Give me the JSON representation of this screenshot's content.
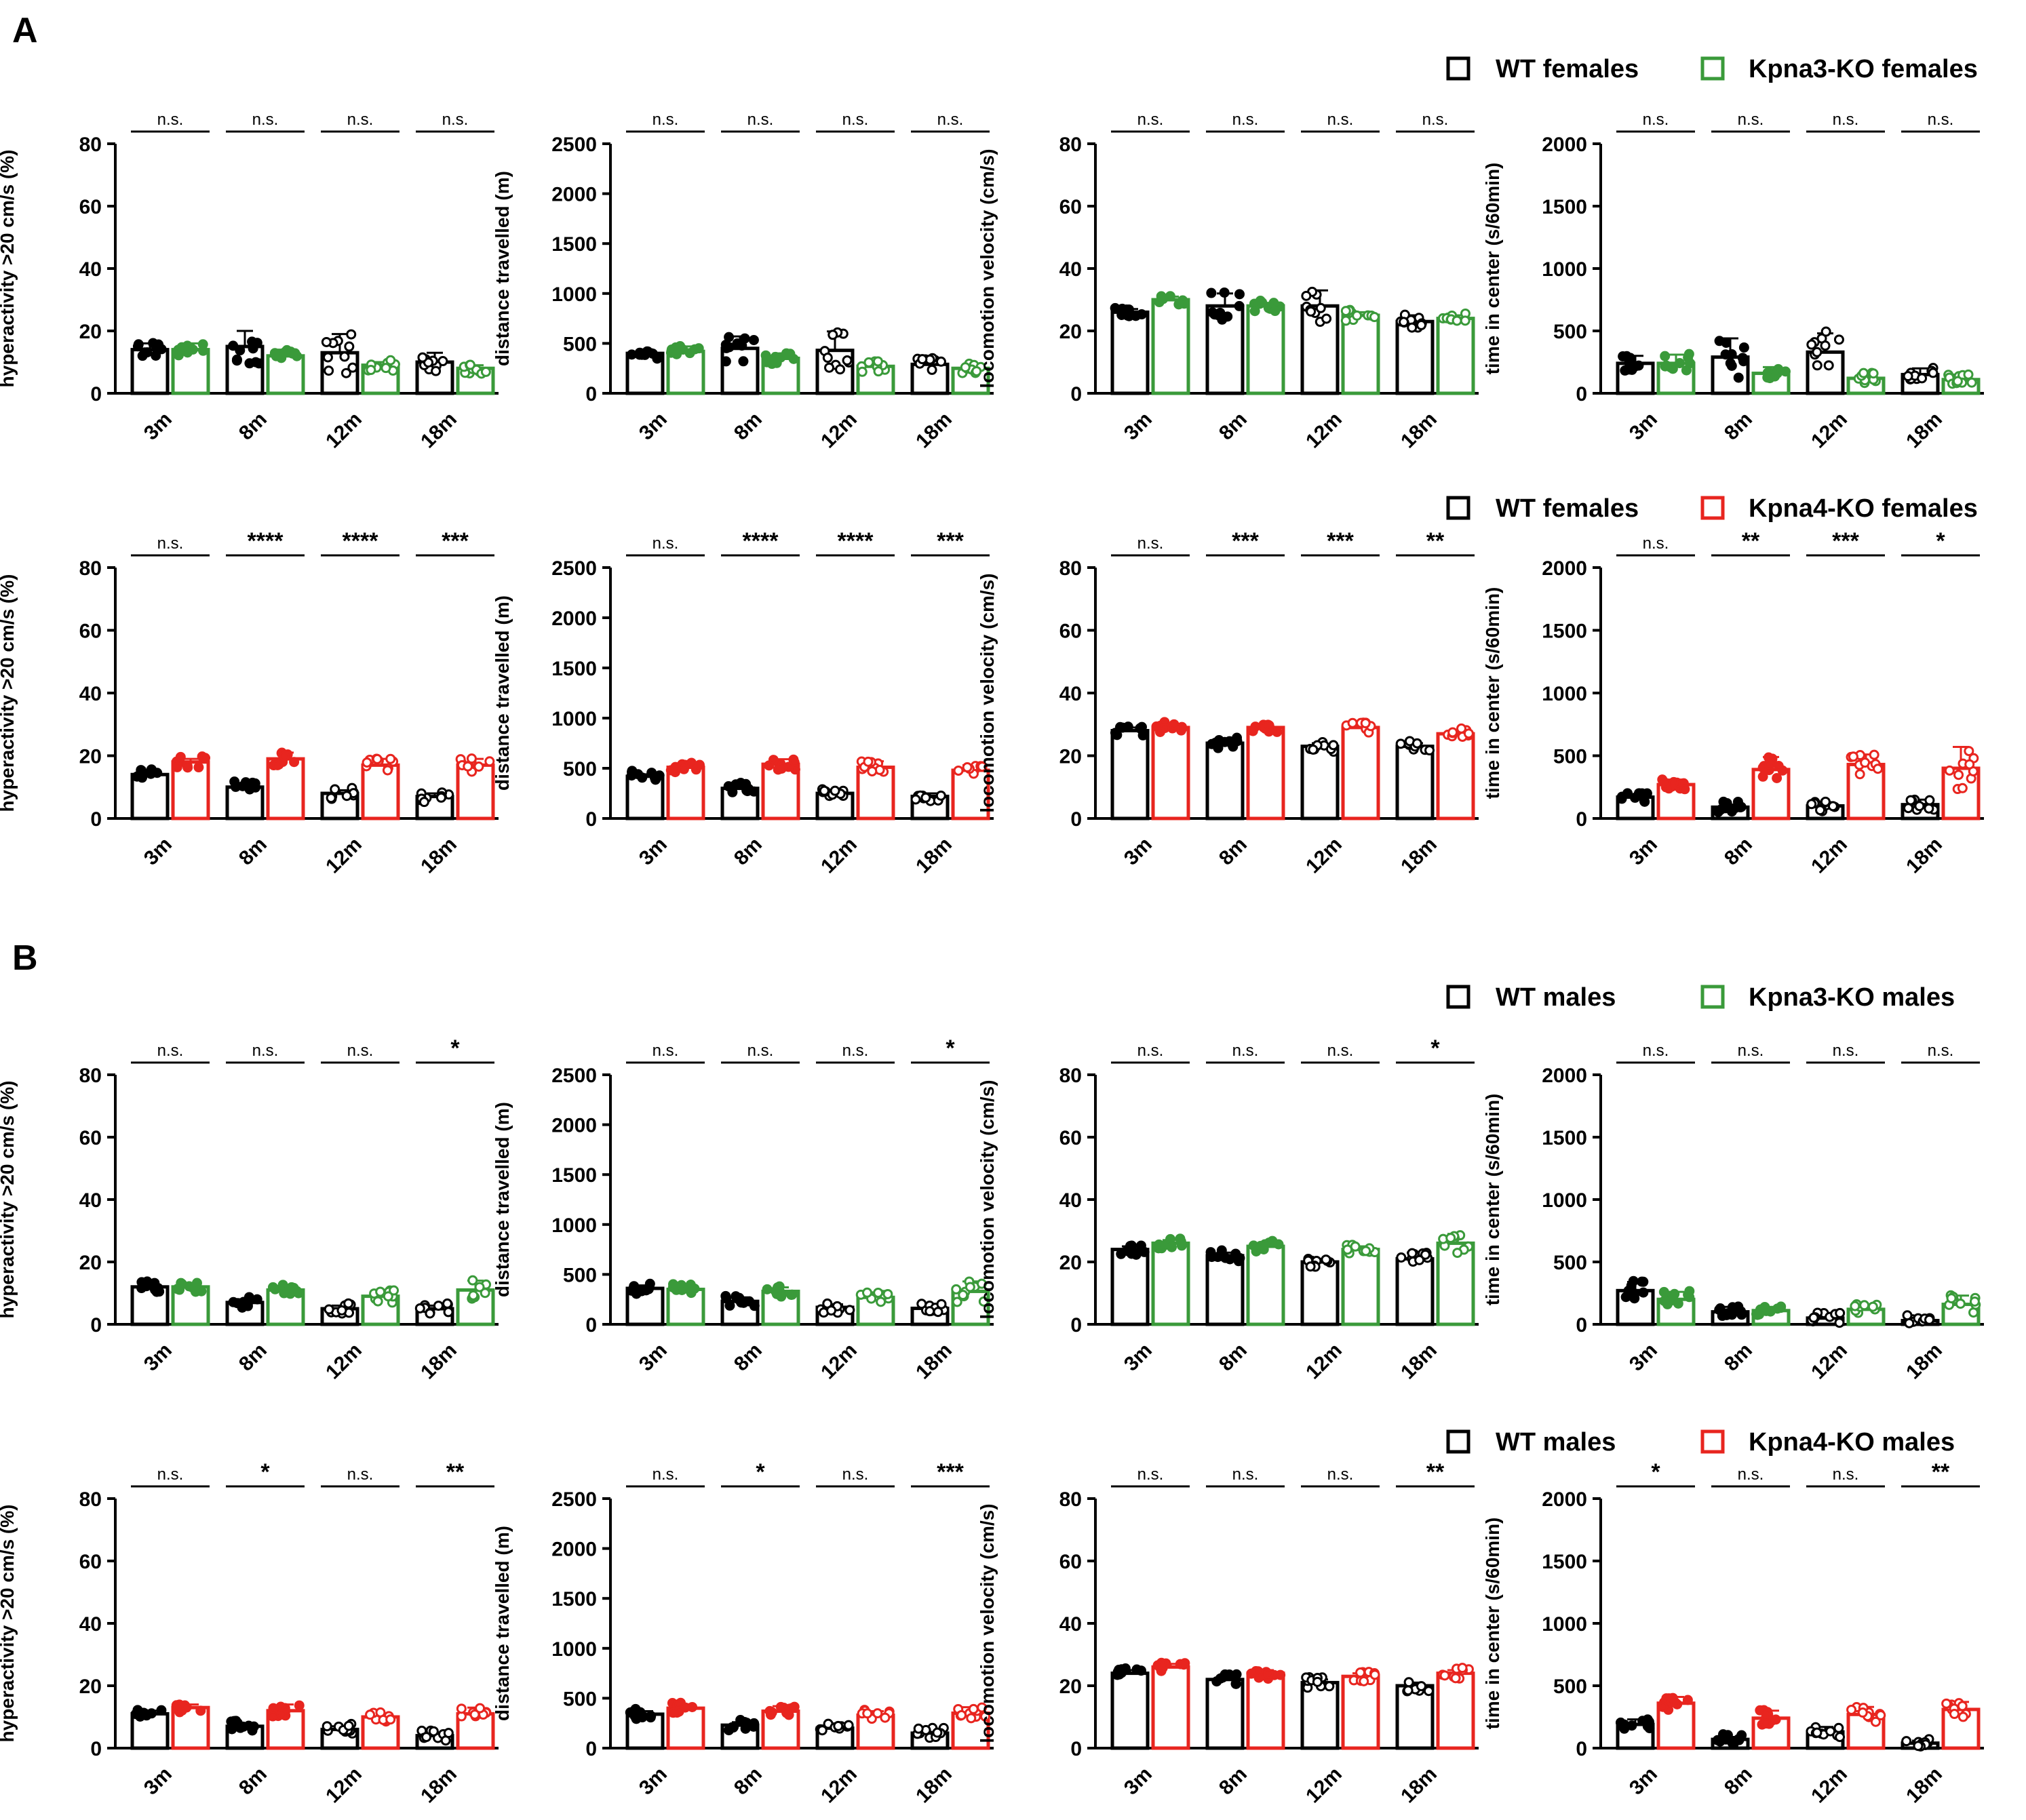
{
  "figure": {
    "panels": [
      {
        "label": "A"
      },
      {
        "label": "B"
      }
    ],
    "legends": [
      {
        "wt": "WT females",
        "ko": "Kpna3-KO females",
        "ko_color": "#3a9a3a"
      },
      {
        "wt": "WT females",
        "ko": "Kpna4-KO females",
        "ko_color": "#e8251f"
      },
      {
        "wt": "WT males",
        "ko": "Kpna3-KO males",
        "ko_color": "#3a9a3a"
      },
      {
        "wt": "WT males",
        "ko": "Kpna4-KO males",
        "ko_color": "#e8251f"
      }
    ]
  },
  "chart_data": [
    {
      "type": "bar",
      "row": 0,
      "col": 0,
      "ylabel": "hyperactivity >20 cm/s (%)",
      "ylim": [
        0,
        80
      ],
      "yticks": [
        0,
        20,
        40,
        60,
        80
      ],
      "categories": [
        "3m",
        "8m",
        "12m",
        "18m"
      ],
      "series": [
        {
          "name": "WT females",
          "color": "#000000",
          "values": [
            14,
            15,
            13,
            10
          ],
          "err": [
            2,
            5,
            6,
            3
          ]
        },
        {
          "name": "Kpna3-KO females",
          "color": "#3a9a3a",
          "values": [
            14,
            12,
            9,
            8
          ],
          "err": [
            2,
            2,
            1,
            1
          ]
        }
      ],
      "significance": [
        "n.s.",
        "n.s.",
        "n.s.",
        "n.s."
      ]
    },
    {
      "type": "bar",
      "row": 0,
      "col": 1,
      "ylabel": "distance travelled (m)",
      "ylim": [
        0,
        2500
      ],
      "yticks": [
        0,
        500,
        1000,
        1500,
        2000,
        2500
      ],
      "categories": [
        "3m",
        "8m",
        "12m",
        "18m"
      ],
      "series": [
        {
          "name": "WT females",
          "color": "#000000",
          "values": [
            400,
            450,
            430,
            290
          ],
          "err": [
            40,
            120,
            190,
            60
          ]
        },
        {
          "name": "Kpna3-KO females",
          "color": "#3a9a3a",
          "values": [
            420,
            350,
            270,
            250
          ],
          "err": [
            50,
            50,
            30,
            30
          ]
        }
      ],
      "significance": [
        "n.s.",
        "n.s.",
        "n.s.",
        "n.s."
      ]
    },
    {
      "type": "bar",
      "row": 0,
      "col": 2,
      "ylabel": "locomotion velocity (cm/s)",
      "ylim": [
        0,
        80
      ],
      "yticks": [
        0,
        20,
        40,
        60,
        80
      ],
      "categories": [
        "3m",
        "8m",
        "12m",
        "18m"
      ],
      "series": [
        {
          "name": "WT females",
          "color": "#000000",
          "values": [
            26,
            28,
            28,
            23
          ],
          "err": [
            1,
            4,
            5,
            2
          ]
        },
        {
          "name": "Kpna3-KO females",
          "color": "#3a9a3a",
          "values": [
            30,
            28,
            25,
            24
          ],
          "err": [
            1,
            1,
            1,
            1
          ]
        }
      ],
      "significance": [
        "n.s.",
        "n.s.",
        "n.s.",
        "n.s."
      ]
    },
    {
      "type": "bar",
      "row": 0,
      "col": 3,
      "ylabel": "time in center (s/60min)",
      "ylim": [
        0,
        2000
      ],
      "yticks": [
        0,
        500,
        1000,
        1500,
        2000
      ],
      "categories": [
        "3m",
        "8m",
        "12m",
        "18m"
      ],
      "series": [
        {
          "name": "WT females",
          "color": "#000000",
          "values": [
            240,
            290,
            330,
            150
          ],
          "err": [
            60,
            150,
            150,
            50
          ]
        },
        {
          "name": "Kpna3-KO females",
          "color": "#3a9a3a",
          "values": [
            240,
            160,
            120,
            110
          ],
          "err": [
            70,
            50,
            30,
            40
          ]
        }
      ],
      "significance": [
        "n.s.",
        "n.s.",
        "n.s.",
        "n.s."
      ]
    },
    {
      "type": "bar",
      "row": 1,
      "col": 0,
      "ylabel": "hyperactivity >20 cm/s (%)",
      "ylim": [
        0,
        80
      ],
      "yticks": [
        0,
        20,
        40,
        60,
        80
      ],
      "categories": [
        "3m",
        "8m",
        "12m",
        "18m"
      ],
      "series": [
        {
          "name": "WT females",
          "color": "#000000",
          "values": [
            14,
            10,
            8,
            7
          ],
          "err": [
            1,
            1,
            1,
            1
          ]
        },
        {
          "name": "Kpna4-KO females",
          "color": "#e8251f",
          "values": [
            18,
            19,
            17,
            17
          ],
          "err": [
            1,
            2,
            2,
            2
          ]
        }
      ],
      "significance": [
        "n.s.",
        "****",
        "****",
        "***"
      ]
    },
    {
      "type": "bar",
      "row": 1,
      "col": 1,
      "ylabel": "distance travelled (m)",
      "ylim": [
        0,
        2500
      ],
      "yticks": [
        0,
        500,
        1000,
        1500,
        2000,
        2500
      ],
      "categories": [
        "3m",
        "8m",
        "12m",
        "18m"
      ],
      "series": [
        {
          "name": "WT females",
          "color": "#000000",
          "values": [
            420,
            300,
            250,
            220
          ],
          "err": [
            20,
            30,
            30,
            30
          ]
        },
        {
          "name": "Kpna4-KO females",
          "color": "#e8251f",
          "values": [
            510,
            540,
            510,
            480
          ],
          "err": [
            30,
            50,
            60,
            50
          ]
        }
      ],
      "significance": [
        "n.s.",
        "****",
        "****",
        "***"
      ]
    },
    {
      "type": "bar",
      "row": 1,
      "col": 2,
      "ylabel": "locomotion velocity (cm/s)",
      "ylim": [
        0,
        80
      ],
      "yticks": [
        0,
        20,
        40,
        60,
        80
      ],
      "categories": [
        "3m",
        "8m",
        "12m",
        "18m"
      ],
      "series": [
        {
          "name": "WT females",
          "color": "#000000",
          "values": [
            28,
            24,
            23,
            23
          ],
          "err": [
            1,
            1,
            1,
            1
          ]
        },
        {
          "name": "Kpna4-KO females",
          "color": "#e8251f",
          "values": [
            29,
            29,
            29,
            27
          ],
          "err": [
            1,
            1,
            1,
            1
          ]
        }
      ],
      "significance": [
        "n.s.",
        "***",
        "***",
        "**"
      ]
    },
    {
      "type": "bar",
      "row": 1,
      "col": 3,
      "ylabel": "time in center (s/60min)",
      "ylim": [
        0,
        2000
      ],
      "yticks": [
        0,
        500,
        1000,
        1500,
        2000
      ],
      "categories": [
        "3m",
        "8m",
        "12m",
        "18m"
      ],
      "series": [
        {
          "name": "WT females",
          "color": "#000000",
          "values": [
            170,
            90,
            100,
            110
          ],
          "err": [
            20,
            20,
            30,
            40
          ]
        },
        {
          "name": "Kpna4-KO females",
          "color": "#e8251f",
          "values": [
            270,
            390,
            430,
            400
          ],
          "err": [
            40,
            100,
            80,
            170
          ]
        }
      ],
      "significance": [
        "n.s.",
        "**",
        "***",
        "*"
      ]
    },
    {
      "type": "bar",
      "row": 2,
      "col": 0,
      "ylabel": "hyperactivity >20 cm/s (%)",
      "ylim": [
        0,
        80
      ],
      "yticks": [
        0,
        20,
        40,
        60,
        80
      ],
      "categories": [
        "3m",
        "8m",
        "12m",
        "18m"
      ],
      "series": [
        {
          "name": "WT males",
          "color": "#000000",
          "values": [
            12,
            7,
            5,
            5
          ],
          "err": [
            1,
            1,
            1,
            1
          ]
        },
        {
          "name": "Kpna3-KO males",
          "color": "#3a9a3a",
          "values": [
            12,
            11,
            9,
            11
          ],
          "err": [
            1,
            1,
            2,
            3
          ]
        }
      ],
      "significance": [
        "n.s.",
        "n.s.",
        "n.s.",
        "*"
      ]
    },
    {
      "type": "bar",
      "row": 2,
      "col": 1,
      "ylabel": "distance travelled (m)",
      "ylim": [
        0,
        2500
      ],
      "yticks": [
        0,
        500,
        1000,
        1500,
        2000,
        2500
      ],
      "categories": [
        "3m",
        "8m",
        "12m",
        "18m"
      ],
      "series": [
        {
          "name": "WT males",
          "color": "#000000",
          "values": [
            360,
            230,
            170,
            160
          ],
          "err": [
            30,
            40,
            30,
            30
          ]
        },
        {
          "name": "Kpna3-KO males",
          "color": "#3a9a3a",
          "values": [
            350,
            330,
            270,
            330
          ],
          "err": [
            40,
            40,
            50,
            100
          ]
        }
      ],
      "significance": [
        "n.s.",
        "n.s.",
        "n.s.",
        "*"
      ]
    },
    {
      "type": "bar",
      "row": 2,
      "col": 2,
      "ylabel": "locomotion velocity (cm/s)",
      "ylim": [
        0,
        80
      ],
      "yticks": [
        0,
        20,
        40,
        60,
        80
      ],
      "categories": [
        "3m",
        "8m",
        "12m",
        "18m"
      ],
      "series": [
        {
          "name": "WT males",
          "color": "#000000",
          "values": [
            24,
            22,
            20,
            21
          ],
          "err": [
            1,
            1,
            1,
            2
          ]
        },
        {
          "name": "Kpna3-KO males",
          "color": "#3a9a3a",
          "values": [
            26,
            25,
            24,
            26
          ],
          "err": [
            1,
            1,
            1,
            3
          ]
        }
      ],
      "significance": [
        "n.s.",
        "n.s.",
        "n.s.",
        "*"
      ]
    },
    {
      "type": "bar",
      "row": 2,
      "col": 3,
      "ylabel": "time in center (s/60min)",
      "ylim": [
        0,
        2000
      ],
      "yticks": [
        0,
        500,
        1000,
        1500,
        2000
      ],
      "categories": [
        "3m",
        "8m",
        "12m",
        "18m"
      ],
      "series": [
        {
          "name": "WT males",
          "color": "#000000",
          "values": [
            270,
            100,
            50,
            30
          ],
          "err": [
            70,
            40,
            20,
            10
          ]
        },
        {
          "name": "Kpna3-KO males",
          "color": "#3a9a3a",
          "values": [
            200,
            110,
            120,
            160
          ],
          "err": [
            60,
            30,
            30,
            70
          ]
        }
      ],
      "significance": [
        "n.s.",
        "n.s.",
        "n.s.",
        "n.s."
      ]
    },
    {
      "type": "bar",
      "row": 3,
      "col": 0,
      "ylabel": "hyperactivity >20 cm/s (%)",
      "ylim": [
        0,
        80
      ],
      "yticks": [
        0,
        20,
        40,
        60,
        80
      ],
      "categories": [
        "3m",
        "8m",
        "12m",
        "18m"
      ],
      "series": [
        {
          "name": "WT males",
          "color": "#000000",
          "values": [
            11,
            7,
            6,
            4
          ],
          "err": [
            1,
            1,
            1,
            1
          ]
        },
        {
          "name": "Kpna4-KO males",
          "color": "#e8251f",
          "values": [
            13,
            12,
            10,
            11
          ],
          "err": [
            1,
            2,
            1,
            2
          ]
        }
      ],
      "significance": [
        "n.s.",
        "*",
        "n.s.",
        "**"
      ]
    },
    {
      "type": "bar",
      "row": 3,
      "col": 1,
      "ylabel": "distance travelled (m)",
      "ylim": [
        0,
        2500
      ],
      "yticks": [
        0,
        500,
        1000,
        1500,
        2000,
        2500
      ],
      "categories": [
        "3m",
        "8m",
        "12m",
        "18m"
      ],
      "series": [
        {
          "name": "WT males",
          "color": "#000000",
          "values": [
            340,
            230,
            200,
            150
          ],
          "err": [
            30,
            30,
            30,
            30
          ]
        },
        {
          "name": "Kpna4-KO males",
          "color": "#e8251f",
          "values": [
            400,
            370,
            330,
            350
          ],
          "err": [
            40,
            50,
            40,
            60
          ]
        }
      ],
      "significance": [
        "n.s.",
        "*",
        "n.s.",
        "***"
      ]
    },
    {
      "type": "bar",
      "row": 3,
      "col": 2,
      "ylabel": "locomotion velocity (cm/s)",
      "ylim": [
        0,
        80
      ],
      "yticks": [
        0,
        20,
        40,
        60,
        80
      ],
      "categories": [
        "3m",
        "8m",
        "12m",
        "18m"
      ],
      "series": [
        {
          "name": "WT males",
          "color": "#000000",
          "values": [
            24,
            22,
            21,
            20
          ],
          "err": [
            1,
            1,
            1,
            1
          ]
        },
        {
          "name": "Kpna4-KO males",
          "color": "#e8251f",
          "values": [
            26,
            24,
            23,
            24
          ],
          "err": [
            1,
            1,
            1,
            1
          ]
        }
      ],
      "significance": [
        "n.s.",
        "n.s.",
        "n.s.",
        "**"
      ]
    },
    {
      "type": "bar",
      "row": 3,
      "col": 3,
      "ylabel": "time in center (s/60min)",
      "ylim": [
        0,
        2000
      ],
      "yticks": [
        0,
        500,
        1000,
        1500,
        2000
      ],
      "categories": [
        "3m",
        "8m",
        "12m",
        "18m"
      ],
      "series": [
        {
          "name": "WT males",
          "color": "#000000",
          "values": [
            190,
            70,
            130,
            40
          ],
          "err": [
            40,
            20,
            40,
            20
          ]
        },
        {
          "name": "Kpna4-KO males",
          "color": "#e8251f",
          "values": [
            360,
            240,
            270,
            310
          ],
          "err": [
            50,
            60,
            60,
            60
          ]
        }
      ],
      "significance": [
        "*",
        "n.s.",
        "n.s.",
        "**"
      ]
    }
  ]
}
